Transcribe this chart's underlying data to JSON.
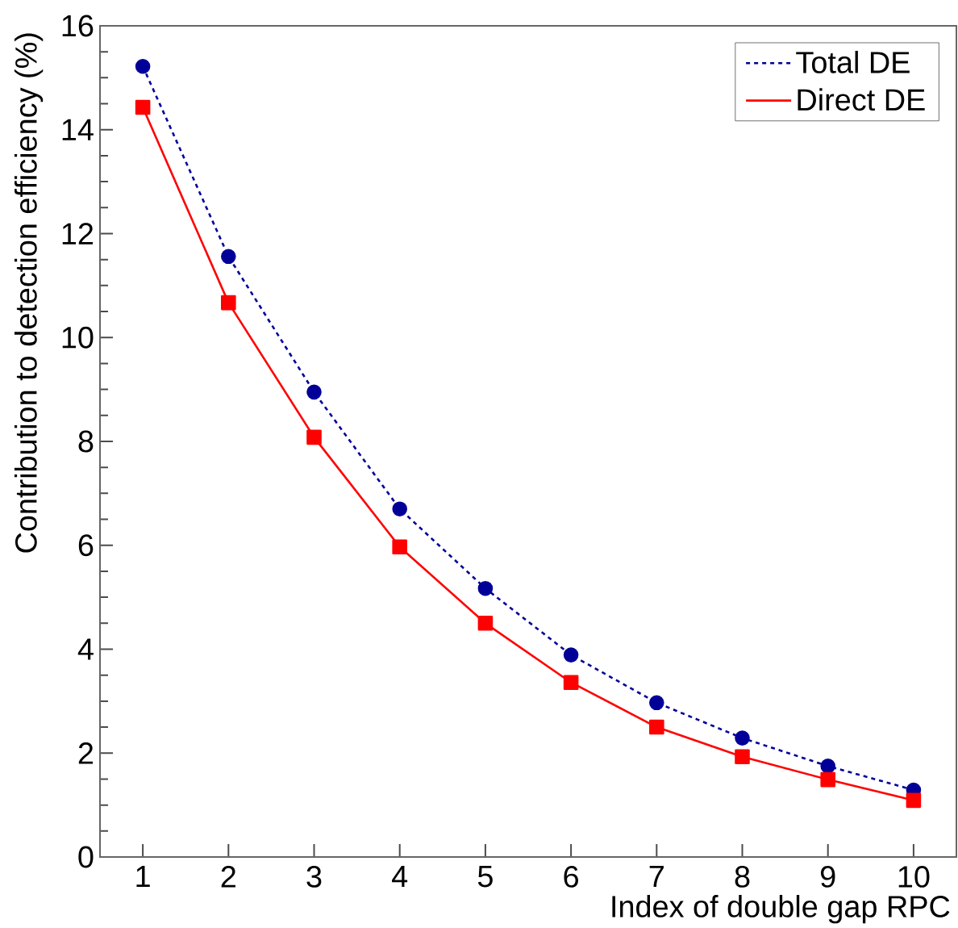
{
  "chart_data": {
    "type": "line",
    "xlabel": "Index of double gap RPC",
    "ylabel": "Contribution to detection efficiency (%)",
    "x": [
      1,
      2,
      3,
      4,
      5,
      6,
      7,
      8,
      9,
      10
    ],
    "series": [
      {
        "name": "Total DE",
        "color": "#000099",
        "marker": "circle",
        "line_style": "dotted",
        "values": [
          15.22,
          11.56,
          8.95,
          6.7,
          5.17,
          3.89,
          2.97,
          2.29,
          1.75,
          1.29
        ]
      },
      {
        "name": "Direct DE",
        "color": "#ff0000",
        "marker": "square",
        "line_style": "solid",
        "values": [
          14.43,
          10.67,
          8.08,
          5.97,
          4.5,
          3.36,
          2.5,
          1.93,
          1.49,
          1.09
        ]
      }
    ],
    "xlim": [
      0.5,
      10.5
    ],
    "ylim": [
      0,
      16
    ],
    "xticks": [
      1,
      2,
      3,
      4,
      5,
      6,
      7,
      8,
      9,
      10
    ],
    "yticks": [
      0,
      2,
      4,
      6,
      8,
      10,
      12,
      14,
      16
    ],
    "grid": false,
    "legend": "top right"
  }
}
